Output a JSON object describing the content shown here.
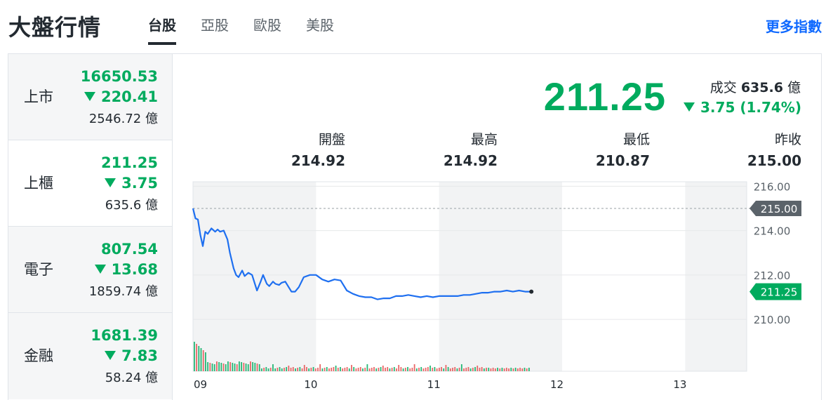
{
  "header": {
    "title": "大盤行情",
    "tabs": [
      "台股",
      "亞股",
      "歐股",
      "美股"
    ],
    "more_link": "更多指數"
  },
  "sidebar": {
    "items": [
      {
        "name": "上市",
        "price": "16650.53",
        "change": "220.41",
        "volume": "2546.72",
        "unit": "億"
      },
      {
        "name": "上櫃",
        "price": "211.25",
        "change": "3.75",
        "volume": "635.6",
        "unit": "億"
      },
      {
        "name": "電子",
        "price": "807.54",
        "change": "13.68",
        "volume": "1859.74",
        "unit": "億"
      },
      {
        "name": "金融",
        "price": "1681.39",
        "change": "7.83",
        "volume": "58.24",
        "unit": "億"
      }
    ]
  },
  "detail": {
    "price": "211.25",
    "trade_label": "成交",
    "trade_value": "635.6",
    "trade_unit": "億",
    "change": "3.75 (1.74%)",
    "stats": [
      {
        "label": "開盤",
        "value": "214.92"
      },
      {
        "label": "最高",
        "value": "214.92"
      },
      {
        "label": "最低",
        "value": "210.87"
      },
      {
        "label": "昨收",
        "value": "215.00"
      }
    ]
  },
  "colors": {
    "down": "#00ab5e",
    "up": "#e54c4c",
    "line": "#1e6ff0",
    "accent": "#0f69ff",
    "ref_tag": "#5b636a"
  },
  "chart_data": {
    "type": "line",
    "x_ticks": [
      "09",
      "10",
      "11",
      "12",
      "13"
    ],
    "y_ticks": [
      "216.00",
      "214.00",
      "212.00",
      "210.00"
    ],
    "ylim": [
      209.3,
      216.2
    ],
    "xlim": [
      9.0,
      13.5
    ],
    "ref_value": 215.0,
    "ref_label": "215.00",
    "current_label": "211.25",
    "current_value": 211.25,
    "series": [
      {
        "x": [
          9.0,
          9.02,
          9.04,
          9.06,
          9.08,
          9.1,
          9.12,
          9.15,
          9.18,
          9.2,
          9.22,
          9.25,
          9.28,
          9.3,
          9.33,
          9.35,
          9.37,
          9.4,
          9.42,
          9.45,
          9.48,
          9.5,
          9.52,
          9.55,
          9.57,
          9.6,
          9.62,
          9.65,
          9.67,
          9.7,
          9.72,
          9.75,
          9.8,
          9.83,
          9.86,
          9.9,
          9.95,
          10.0,
          10.05,
          10.1,
          10.15,
          10.2,
          10.25,
          10.3,
          10.35,
          10.4,
          10.45,
          10.5,
          10.55,
          10.6,
          10.65,
          10.7,
          10.75,
          10.8,
          10.85,
          10.9,
          10.95,
          11.0,
          11.05,
          11.1,
          11.15,
          11.2,
          11.25,
          11.3,
          11.35,
          11.4,
          11.45,
          11.5,
          11.55,
          11.6,
          11.65,
          11.7,
          11.75
        ],
        "y": [
          215.0,
          214.55,
          214.5,
          213.8,
          213.3,
          213.95,
          213.85,
          214.1,
          213.95,
          214.05,
          213.95,
          214.0,
          213.6,
          213.0,
          212.3,
          212.0,
          211.9,
          212.2,
          211.95,
          212.1,
          212.0,
          211.65,
          211.3,
          211.7,
          212.0,
          211.6,
          211.5,
          211.7,
          211.6,
          211.55,
          211.65,
          211.7,
          211.25,
          211.25,
          211.45,
          211.9,
          212.0,
          212.0,
          211.8,
          211.7,
          211.8,
          211.75,
          211.3,
          211.15,
          211.05,
          211.0,
          211.0,
          210.9,
          210.95,
          210.95,
          211.05,
          211.05,
          211.1,
          211.05,
          211.0,
          211.05,
          211.0,
          211.05,
          211.05,
          211.05,
          211.05,
          211.1,
          211.1,
          211.15,
          211.2,
          211.2,
          211.25,
          211.25,
          211.3,
          211.25,
          211.3,
          211.25,
          211.25
        ]
      }
    ],
    "volume_bars": 150
  }
}
